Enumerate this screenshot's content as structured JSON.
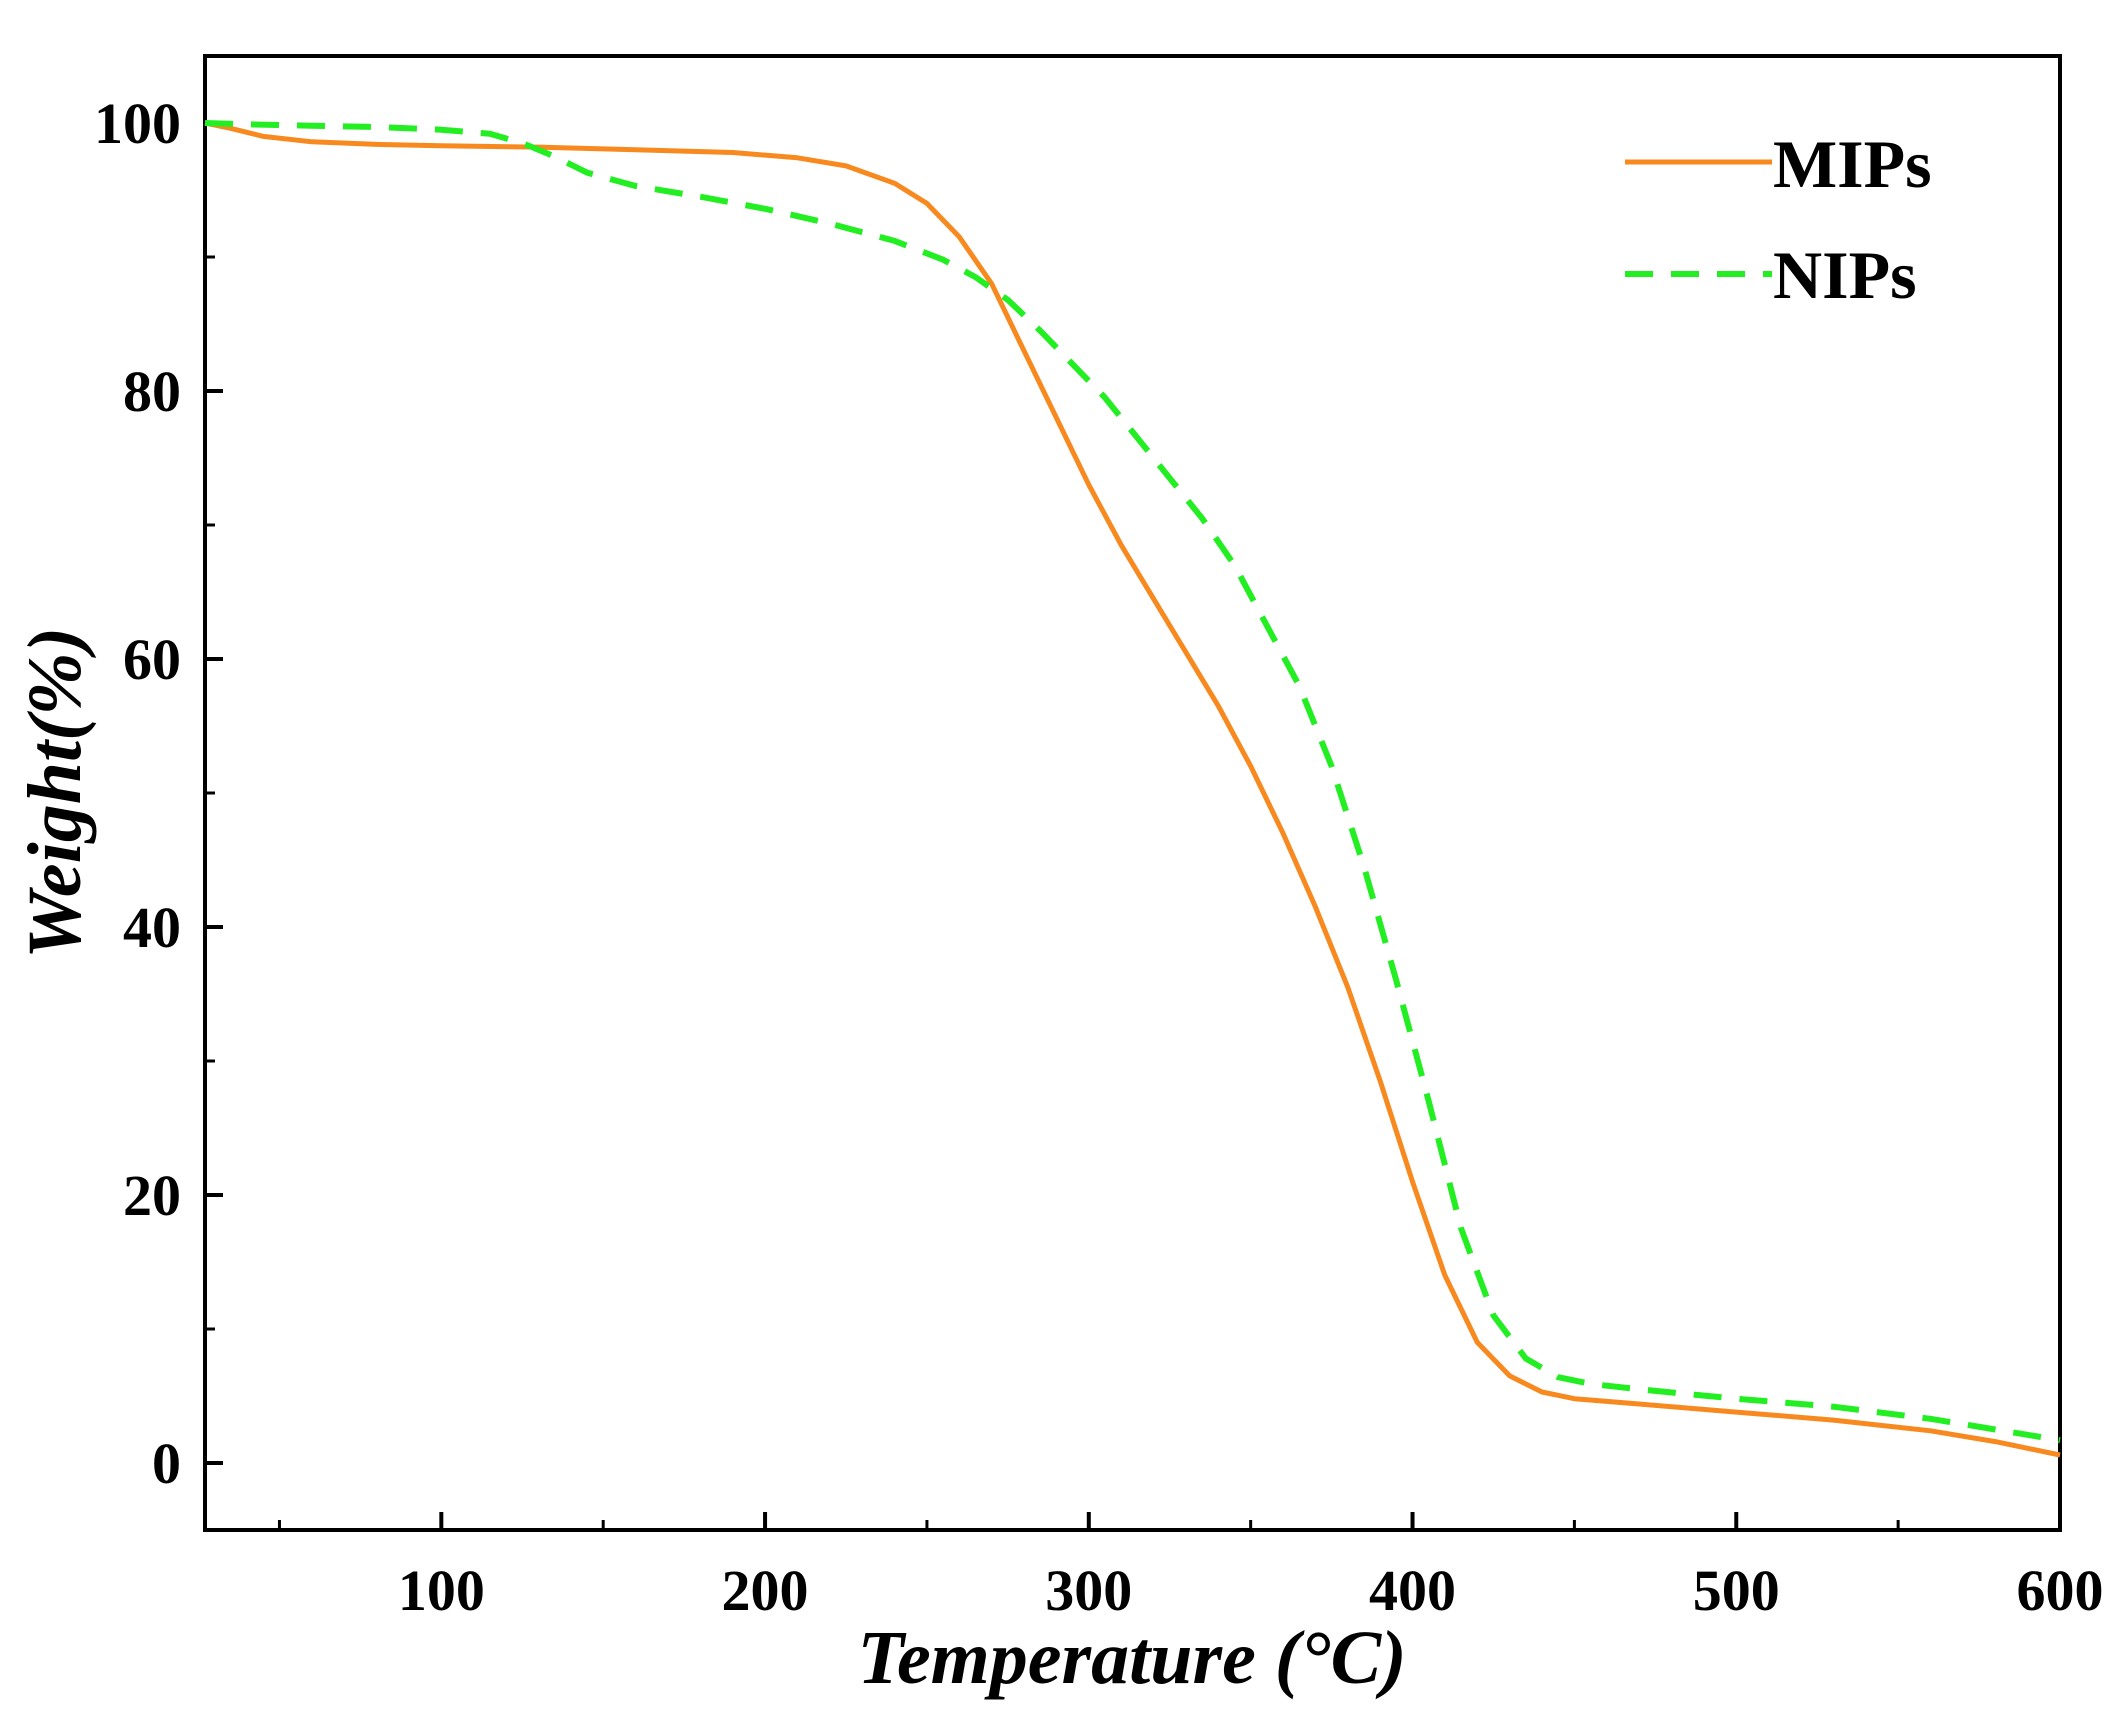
{
  "chart_data": {
    "type": "line",
    "title": "",
    "xlabel": "Temperature (°C)",
    "ylabel": "Weight(%)",
    "xlim": [
      27,
      600
    ],
    "ylim": [
      -5,
      105
    ],
    "xticks": [
      100,
      200,
      300,
      400,
      500,
      600
    ],
    "yticks": [
      0,
      20,
      40,
      60,
      80,
      100
    ],
    "x_tick_labels": [
      "100",
      "200",
      "300",
      "400",
      "500",
      "600"
    ],
    "y_tick_labels": [
      "0",
      "20",
      "40",
      "60",
      "80",
      "100"
    ],
    "grid": false,
    "legend_position": "top-right",
    "series": [
      {
        "name": "MIPs",
        "color": "#f7891f",
        "style": "solid",
        "points": [
          [
            27,
            100
          ],
          [
            35,
            99.6
          ],
          [
            45,
            99
          ],
          [
            60,
            98.6
          ],
          [
            80,
            98.4
          ],
          [
            100,
            98.3
          ],
          [
            130,
            98.2
          ],
          [
            160,
            98
          ],
          [
            190,
            97.8
          ],
          [
            210,
            97.4
          ],
          [
            225,
            96.8
          ],
          [
            240,
            95.5
          ],
          [
            250,
            94
          ],
          [
            260,
            91.5
          ],
          [
            270,
            88
          ],
          [
            280,
            83
          ],
          [
            290,
            78
          ],
          [
            300,
            73
          ],
          [
            310,
            68.5
          ],
          [
            320,
            64.5
          ],
          [
            330,
            60.5
          ],
          [
            340,
            56.5
          ],
          [
            350,
            52
          ],
          [
            360,
            47
          ],
          [
            370,
            41.5
          ],
          [
            380,
            35.5
          ],
          [
            390,
            28.5
          ],
          [
            400,
            21
          ],
          [
            410,
            14
          ],
          [
            420,
            9
          ],
          [
            430,
            6.5
          ],
          [
            440,
            5.3
          ],
          [
            450,
            4.8
          ],
          [
            470,
            4.4
          ],
          [
            500,
            3.8
          ],
          [
            530,
            3.2
          ],
          [
            560,
            2.4
          ],
          [
            580,
            1.6
          ],
          [
            600,
            0.6
          ]
        ]
      },
      {
        "name": "NIPs",
        "color": "#22ee22",
        "style": "dashed",
        "points": [
          [
            27,
            100
          ],
          [
            40,
            99.9
          ],
          [
            60,
            99.8
          ],
          [
            80,
            99.7
          ],
          [
            100,
            99.5
          ],
          [
            115,
            99.2
          ],
          [
            125,
            98.5
          ],
          [
            135,
            97.5
          ],
          [
            145,
            96.3
          ],
          [
            160,
            95.3
          ],
          [
            180,
            94.5
          ],
          [
            200,
            93.6
          ],
          [
            220,
            92.5
          ],
          [
            240,
            91.2
          ],
          [
            255,
            89.8
          ],
          [
            265,
            88.5
          ],
          [
            275,
            86.8
          ],
          [
            285,
            84.5
          ],
          [
            295,
            82
          ],
          [
            305,
            79.5
          ],
          [
            315,
            76.5
          ],
          [
            325,
            73.5
          ],
          [
            335,
            70.5
          ],
          [
            345,
            67
          ],
          [
            355,
            62.5
          ],
          [
            365,
            58
          ],
          [
            375,
            52
          ],
          [
            385,
            44.5
          ],
          [
            395,
            36
          ],
          [
            405,
            27
          ],
          [
            415,
            17.5
          ],
          [
            425,
            11
          ],
          [
            435,
            7.8
          ],
          [
            445,
            6.4
          ],
          [
            455,
            5.9
          ],
          [
            470,
            5.5
          ],
          [
            500,
            4.8
          ],
          [
            530,
            4.2
          ],
          [
            560,
            3.3
          ],
          [
            580,
            2.5
          ],
          [
            600,
            1.7
          ]
        ]
      }
    ]
  }
}
